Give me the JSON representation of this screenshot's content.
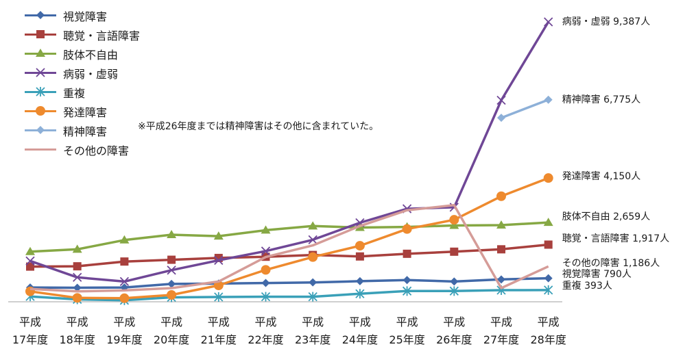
{
  "chart_data": {
    "type": "line",
    "title": "",
    "xlabel": "",
    "ylabel": "",
    "ylim": [
      0,
      9800
    ],
    "grid": false,
    "legend_position": "top-left",
    "note": "※平成26年度までは精神障害はその他に含まれていた。",
    "categories": [
      {
        "top": "平成",
        "bottom": "17年度"
      },
      {
        "top": "平成",
        "bottom": "18年度"
      },
      {
        "top": "平成",
        "bottom": "19年度"
      },
      {
        "top": "平成",
        "bottom": "20年度"
      },
      {
        "top": "平成",
        "bottom": "21年度"
      },
      {
        "top": "平成",
        "bottom": "22年度"
      },
      {
        "top": "平成",
        "bottom": "23年度"
      },
      {
        "top": "平成",
        "bottom": "24年度"
      },
      {
        "top": "平成",
        "bottom": "25年度"
      },
      {
        "top": "平成",
        "bottom": "26年度"
      },
      {
        "top": "平成",
        "bottom": "27年度"
      },
      {
        "top": "平成",
        "bottom": "28年度"
      }
    ],
    "series": [
      {
        "name": "視覚障害",
        "color": "#4169a8",
        "marker": "diamond",
        "values": [
          480,
          470,
          480,
          600,
          610,
          630,
          650,
          690,
          730,
          680,
          750,
          790
        ],
        "end_label": "視覚障害 790人"
      },
      {
        "name": "聴覚・言語障害",
        "color": "#a8403d",
        "marker": "square",
        "values": [
          1180,
          1190,
          1350,
          1410,
          1470,
          1510,
          1570,
          1520,
          1610,
          1680,
          1760,
          1917
        ],
        "end_label": "聴覚・言語障害 1,917人"
      },
      {
        "name": "肢体不自由",
        "color": "#86a844",
        "marker": "triangle",
        "values": [
          1680,
          1760,
          2070,
          2250,
          2200,
          2400,
          2540,
          2490,
          2510,
          2560,
          2570,
          2659
        ],
        "end_label": "肢体不自由 2,659人"
      },
      {
        "name": "病弱・虚弱",
        "color": "#6f4796",
        "marker": "x",
        "values": [
          1370,
          820,
          680,
          1060,
          1390,
          1700,
          2080,
          2650,
          3120,
          3170,
          6760,
          9387
        ],
        "end_label": "病弱・虚弱 9,387人"
      },
      {
        "name": "重複",
        "color": "#3aa0b8",
        "marker": "star",
        "values": [
          180,
          80,
          50,
          150,
          160,
          170,
          170,
          270,
          360,
          360,
          390,
          393
        ],
        "end_label": "重複 393人"
      },
      {
        "name": "発達障害",
        "color": "#ee8a2e",
        "marker": "circle",
        "values": [
          350,
          130,
          120,
          230,
          550,
          1070,
          1500,
          1880,
          2440,
          2750,
          3540,
          4150
        ],
        "end_label": "発達障害 4,150人"
      },
      {
        "name": "精神障害",
        "color": "#8db0d8",
        "marker": "diamond",
        "values": [
          null,
          null,
          null,
          null,
          null,
          null,
          null,
          null,
          null,
          null,
          6170,
          6775
        ],
        "end_label": "精神障害 6,775人"
      },
      {
        "name": "その他の障害",
        "color": "#d59c98",
        "marker": "none",
        "values": [
          430,
          350,
          380,
          460,
          680,
          1500,
          1890,
          2540,
          3070,
          3240,
          460,
          1186
        ],
        "end_label": "その他の障害 1,186人"
      }
    ]
  }
}
